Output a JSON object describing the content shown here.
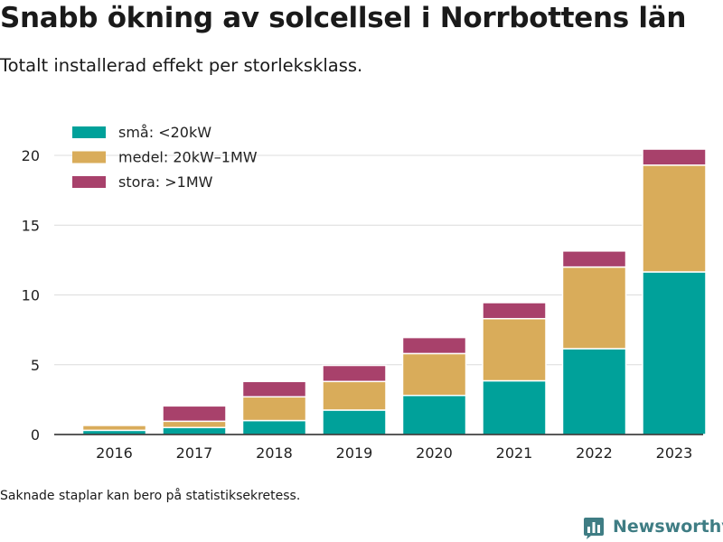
{
  "title": "Snabb ökning av solcellsel i Norrbottens län",
  "subtitle": "Totalt installerad effekt per storleksklass.",
  "footnote": "Saknade staplar kan bero på statistiksekretess.",
  "brand": {
    "name": "Newsworthy",
    "logo_icon": "bar-chart-icon"
  },
  "chart_data": {
    "type": "bar",
    "stacked": true,
    "categories": [
      "2016",
      "2017",
      "2018",
      "2019",
      "2020",
      "2021",
      "2022",
      "2023"
    ],
    "series": [
      {
        "name": "små: <20kW",
        "color": "#00a19a",
        "values": [
          0.3,
          0.5,
          1.0,
          1.75,
          2.8,
          3.85,
          6.15,
          11.65
        ]
      },
      {
        "name": "medel: 20kW–1MW",
        "color": "#d9ac5a",
        "values": [
          0.35,
          0.45,
          1.7,
          2.05,
          3.0,
          4.45,
          5.85,
          7.65
        ]
      },
      {
        "name": "stora: >1MW",
        "color": "#a8416b",
        "values": [
          0.0,
          1.1,
          1.1,
          1.15,
          1.15,
          1.15,
          1.15,
          1.15
        ]
      }
    ],
    "yticks": [
      0,
      5,
      10,
      15,
      20
    ],
    "ylim": [
      0,
      21
    ],
    "grid": true,
    "legend": "top-left",
    "xlabel": "",
    "ylabel": ""
  }
}
